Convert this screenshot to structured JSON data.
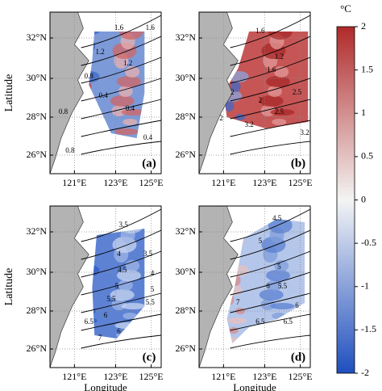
{
  "axes": {
    "ylabel": "Latitude",
    "xlabel": "Longitude",
    "lat_ticks": [
      "32°N",
      "30°N",
      "28°N",
      "26°N"
    ],
    "lon_ticks": [
      "121°E",
      "123°E",
      "125°E"
    ]
  },
  "colorbar": {
    "unit": "°C",
    "ylim": [
      -2,
      2
    ],
    "yticks": [
      -2,
      -1.5,
      -1,
      -0.5,
      0,
      0.5,
      1,
      1.5,
      2
    ]
  },
  "panels": [
    {
      "label": "(a)",
      "contour_labels": [
        "1.6",
        "1.6",
        "1.2",
        "1.2",
        "0.8",
        "0.4",
        "0.4",
        "0.8",
        "0.4",
        "0.8"
      ]
    },
    {
      "label": "(b)",
      "contour_labels": [
        "1.6",
        "1.2",
        "1.6",
        "2",
        "2",
        "2.5",
        "2.5",
        "3.2",
        "3.2",
        "2"
      ]
    },
    {
      "label": "(c)",
      "contour_labels": [
        "3.5",
        "3.5",
        "4",
        "4.5",
        "5",
        "5.5",
        "6",
        "6.5",
        "7",
        "4",
        "5",
        "5.5",
        "6"
      ]
    },
    {
      "label": "(d)",
      "contour_labels": [
        "4.5",
        "5",
        "5",
        "5.5",
        "6",
        "6.5",
        "6",
        "6.5",
        "7"
      ]
    }
  ]
}
